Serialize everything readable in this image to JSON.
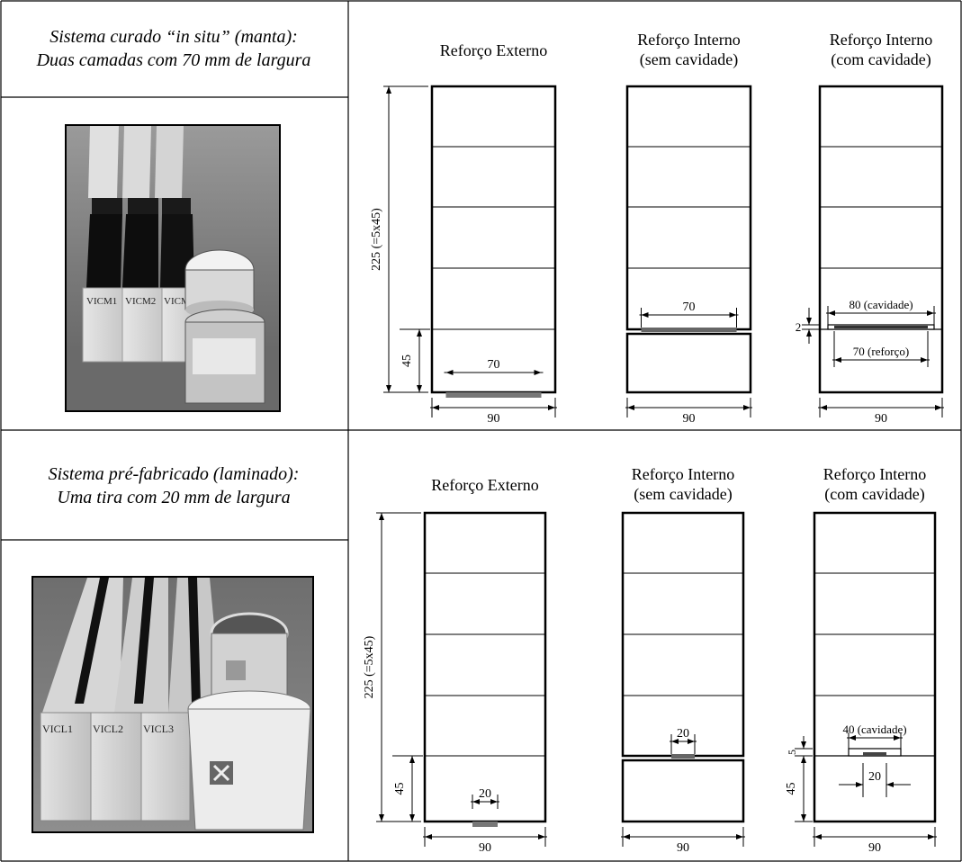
{
  "rows": [
    {
      "system_title_line1": "Sistema curado “in situ” (manta):",
      "system_title_line2": "Duas camadas com 70 mm de largura",
      "photo": {
        "name": "manta-photo",
        "labels": [
          "VICM1",
          "VICM2",
          "VICM3"
        ]
      },
      "panels": [
        {
          "title1": "Reforço Externo",
          "title2": "",
          "dim_height": "225 (=5x45)",
          "dim_layer": "45",
          "dim_reinforcement": "70",
          "dim_width": "90"
        },
        {
          "title1": "Reforço Interno",
          "title2": "(sem cavidade)",
          "dim_reinforcement": "70",
          "dim_width": "90"
        },
        {
          "title1": "Reforço Interno",
          "title2": "(com cavidade)",
          "dim_cavity": "80 (cavidade)",
          "dim_cavity_depth": "2",
          "dim_reinforcement": "70 (reforço)",
          "dim_width": "90"
        }
      ]
    },
    {
      "system_title_line1": "Sistema pré-fabricado (laminado):",
      "system_title_line2": "Uma tira com 20 mm de largura",
      "photo": {
        "name": "laminado-photo",
        "labels": [
          "VICL1",
          "VICL2",
          "VICL3"
        ]
      },
      "panels": [
        {
          "title1": "Reforço Externo",
          "title2": "",
          "dim_height": "225 (=5x45)",
          "dim_layer": "45",
          "dim_reinforcement": "20",
          "dim_width": "90"
        },
        {
          "title1": "Reforço Interno",
          "title2": "(sem cavidade)",
          "dim_reinforcement": "20",
          "dim_width": "90"
        },
        {
          "title1": "Reforço Interno",
          "title2": "(com cavidade)",
          "dim_cavity": "40 (cavidade)",
          "dim_cavity_depth": "5",
          "dim_layer": "45",
          "dim_reinforcement": "20",
          "dim_width": "90"
        }
      ]
    }
  ]
}
